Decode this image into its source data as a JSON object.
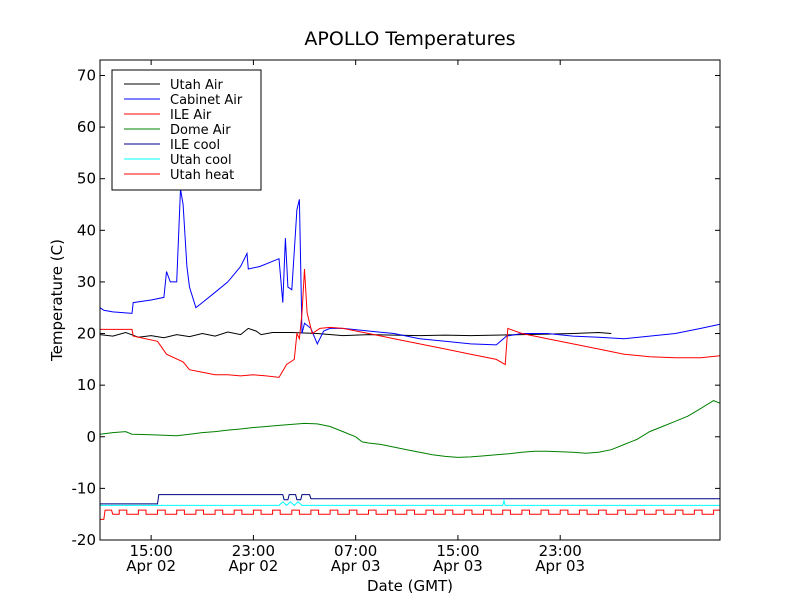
{
  "chart_data": {
    "type": "line",
    "title": "APOLLO Temperatures",
    "xlabel": "Date (GMT)",
    "ylabel": "Temperature (C)",
    "ylim": [
      -20,
      73
    ],
    "xlim": [
      11,
      59.5
    ],
    "x_unit": "hours since Apr 02 00:00 GMT",
    "grid": false,
    "legend_position": "top-left",
    "yticks": [
      {
        "value": -20,
        "label": "-20"
      },
      {
        "value": -10,
        "label": "-10"
      },
      {
        "value": 0,
        "label": "0"
      },
      {
        "value": 10,
        "label": "10"
      },
      {
        "value": 20,
        "label": "20"
      },
      {
        "value": 30,
        "label": "30"
      },
      {
        "value": 40,
        "label": "40"
      },
      {
        "value": 50,
        "label": "50"
      },
      {
        "value": 60,
        "label": "60"
      },
      {
        "value": 70,
        "label": "70"
      }
    ],
    "xticks": [
      {
        "value": 15,
        "time": "15:00",
        "date": "Apr 02"
      },
      {
        "value": 23,
        "time": "23:00",
        "date": "Apr 02"
      },
      {
        "value": 31,
        "time": "07:00",
        "date": "Apr 03"
      },
      {
        "value": 39,
        "time": "15:00",
        "date": "Apr 03"
      },
      {
        "value": 47,
        "time": "23:00",
        "date": "Apr 03"
      }
    ],
    "series": [
      {
        "name": "Utah Air",
        "color": "#000000",
        "points": [
          [
            11,
            19.8
          ],
          [
            12,
            19.5
          ],
          [
            13,
            20.2
          ],
          [
            14,
            19.3
          ],
          [
            15,
            19.6
          ],
          [
            16,
            19.2
          ],
          [
            17,
            19.8
          ],
          [
            18,
            19.4
          ],
          [
            19,
            20.0
          ],
          [
            20,
            19.5
          ],
          [
            21,
            20.3
          ],
          [
            22,
            19.8
          ],
          [
            22.6,
            21.0
          ],
          [
            23.2,
            20.5
          ],
          [
            23.6,
            19.8
          ],
          [
            24.5,
            20.2
          ],
          [
            26,
            20.2
          ],
          [
            28,
            20.0
          ],
          [
            30,
            19.6
          ],
          [
            32,
            19.8
          ],
          [
            34,
            19.7
          ],
          [
            36,
            19.6
          ],
          [
            38,
            19.7
          ],
          [
            40,
            19.6
          ],
          [
            42,
            19.7
          ],
          [
            44,
            19.8
          ],
          [
            46,
            19.9
          ],
          [
            48,
            20.0
          ],
          [
            50,
            20.2
          ],
          [
            51,
            20.0
          ]
        ]
      },
      {
        "name": "Cabinet Air",
        "color": "#0000ff",
        "points": [
          [
            11,
            25.0
          ],
          [
            11.3,
            24.5
          ],
          [
            12,
            24.2
          ],
          [
            13,
            24.0
          ],
          [
            13.5,
            23.9
          ],
          [
            13.6,
            26.0
          ],
          [
            15,
            26.5
          ],
          [
            16,
            27.0
          ],
          [
            16.2,
            32.0
          ],
          [
            16.5,
            30.0
          ],
          [
            17,
            30.0
          ],
          [
            17.3,
            48.0
          ],
          [
            17.5,
            45.0
          ],
          [
            17.8,
            33.0
          ],
          [
            18,
            29.0
          ],
          [
            18.5,
            25.0
          ],
          [
            19,
            26.0
          ],
          [
            20,
            28.0
          ],
          [
            21,
            30.0
          ],
          [
            22,
            33.0
          ],
          [
            22.5,
            35.5
          ],
          [
            22.6,
            32.5
          ],
          [
            23.5,
            33.0
          ],
          [
            24.5,
            34.0
          ],
          [
            25,
            34.5
          ],
          [
            25.3,
            26.0
          ],
          [
            25.5,
            38.5
          ],
          [
            25.7,
            29.0
          ],
          [
            26,
            28.5
          ],
          [
            26.2,
            36.0
          ],
          [
            26.4,
            44.0
          ],
          [
            26.6,
            46.0
          ],
          [
            26.8,
            20.0
          ],
          [
            27,
            22.0
          ],
          [
            27.5,
            21.0
          ],
          [
            28,
            18.0
          ],
          [
            28.5,
            20.5
          ],
          [
            29,
            21.0
          ],
          [
            30,
            21.0
          ],
          [
            32,
            20.5
          ],
          [
            34,
            20.0
          ],
          [
            36,
            19.0
          ],
          [
            38,
            18.5
          ],
          [
            40,
            18.0
          ],
          [
            42,
            17.8
          ],
          [
            42.8,
            19.5
          ],
          [
            44,
            20.0
          ],
          [
            46,
            20.0
          ],
          [
            48,
            19.5
          ],
          [
            50,
            19.3
          ],
          [
            52,
            19.0
          ],
          [
            54,
            19.5
          ],
          [
            56,
            20.0
          ],
          [
            58,
            21.0
          ],
          [
            59.5,
            21.8
          ]
        ]
      },
      {
        "name": "ILE Air",
        "color": "#ff0000",
        "points": [
          [
            11,
            20.8
          ],
          [
            13.5,
            20.8
          ],
          [
            13.6,
            19.5
          ],
          [
            15.5,
            18.5
          ],
          [
            16.2,
            16.0
          ],
          [
            17.5,
            14.5
          ],
          [
            18,
            13.0
          ],
          [
            19,
            12.5
          ],
          [
            20,
            12.0
          ],
          [
            21,
            12.0
          ],
          [
            22,
            11.8
          ],
          [
            23,
            12.0
          ],
          [
            24,
            11.8
          ],
          [
            25,
            11.5
          ],
          [
            25.6,
            14.0
          ],
          [
            26.2,
            15.0
          ],
          [
            26.4,
            20.0
          ],
          [
            26.6,
            19.0
          ],
          [
            26.8,
            24.0
          ],
          [
            27.0,
            32.5
          ],
          [
            27.2,
            24.0
          ],
          [
            27.6,
            20.0
          ],
          [
            28.2,
            21.0
          ],
          [
            29,
            21.2
          ],
          [
            30,
            21.0
          ],
          [
            32,
            20.0
          ],
          [
            34,
            19.0
          ],
          [
            36,
            18.0
          ],
          [
            38,
            17.0
          ],
          [
            40,
            16.0
          ],
          [
            42,
            15.0
          ],
          [
            42.7,
            14.0
          ],
          [
            42.9,
            21.0
          ],
          [
            44,
            20.0
          ],
          [
            46,
            19.0
          ],
          [
            48,
            18.0
          ],
          [
            50,
            17.0
          ],
          [
            52,
            16.0
          ],
          [
            54,
            15.5
          ],
          [
            56,
            15.3
          ],
          [
            58,
            15.3
          ],
          [
            59.5,
            15.7
          ]
        ]
      },
      {
        "name": "Dome Air",
        "color": "#008000",
        "points": [
          [
            11,
            0.5
          ],
          [
            12,
            0.8
          ],
          [
            13,
            1.0
          ],
          [
            13.5,
            0.5
          ],
          [
            15,
            0.4
          ],
          [
            16,
            0.3
          ],
          [
            17,
            0.2
          ],
          [
            18,
            0.5
          ],
          [
            19,
            0.8
          ],
          [
            20,
            1.0
          ],
          [
            21,
            1.3
          ],
          [
            22,
            1.5
          ],
          [
            23,
            1.8
          ],
          [
            24,
            2.0
          ],
          [
            25,
            2.2
          ],
          [
            26,
            2.4
          ],
          [
            27,
            2.6
          ],
          [
            28,
            2.5
          ],
          [
            29,
            2.0
          ],
          [
            30,
            1.0
          ],
          [
            31,
            0.0
          ],
          [
            31.5,
            -1.0
          ],
          [
            32,
            -1.2
          ],
          [
            33,
            -1.5
          ],
          [
            34,
            -2.0
          ],
          [
            35,
            -2.5
          ],
          [
            36,
            -3.0
          ],
          [
            37,
            -3.5
          ],
          [
            38,
            -3.8
          ],
          [
            39,
            -4.0
          ],
          [
            40,
            -3.9
          ],
          [
            41,
            -3.7
          ],
          [
            42,
            -3.5
          ],
          [
            43,
            -3.3
          ],
          [
            44,
            -3.0
          ],
          [
            45,
            -2.8
          ],
          [
            46,
            -2.8
          ],
          [
            47,
            -2.9
          ],
          [
            48,
            -3.0
          ],
          [
            49,
            -3.2
          ],
          [
            50,
            -3.0
          ],
          [
            51,
            -2.5
          ],
          [
            52,
            -1.5
          ],
          [
            53,
            -0.5
          ],
          [
            54,
            1.0
          ],
          [
            55,
            2.0
          ],
          [
            56,
            3.0
          ],
          [
            57,
            4.0
          ],
          [
            58,
            5.5
          ],
          [
            59,
            7.0
          ],
          [
            59.5,
            6.5
          ]
        ]
      },
      {
        "name": "ILE cool",
        "color": "#000080",
        "points": [
          [
            11,
            -13.0
          ],
          [
            15.5,
            -13.0
          ],
          [
            15.6,
            -11.2
          ],
          [
            25.3,
            -11.2
          ],
          [
            25.4,
            -12.2
          ],
          [
            25.7,
            -12.2
          ],
          [
            25.8,
            -11.2
          ],
          [
            26.3,
            -11.2
          ],
          [
            26.4,
            -12.2
          ],
          [
            26.7,
            -12.2
          ],
          [
            26.8,
            -11.2
          ],
          [
            27.4,
            -11.2
          ],
          [
            27.5,
            -12.0
          ],
          [
            59.5,
            -12.0
          ]
        ]
      },
      {
        "name": "Utah cool",
        "color": "#00ffff",
        "points": [
          [
            11,
            -13.3
          ],
          [
            25,
            -13.3
          ],
          [
            25.3,
            -12.6
          ],
          [
            25.6,
            -13.3
          ],
          [
            25.9,
            -12.6
          ],
          [
            26.2,
            -13.3
          ],
          [
            26.5,
            -12.6
          ],
          [
            26.8,
            -13.3
          ],
          [
            42.5,
            -13.3
          ],
          [
            42.6,
            -12.4
          ],
          [
            42.7,
            -13.3
          ],
          [
            59.5,
            -13.3
          ]
        ]
      },
      {
        "name": "Utah heat",
        "color": "#ff0000",
        "points": [
          [
            11,
            -16.0
          ],
          [
            11.3,
            -16.0
          ],
          [
            11.4,
            -14.2
          ],
          [
            11.9,
            -14.2
          ],
          [
            12,
            -15.0
          ]
        ]
      }
    ],
    "utah_heat_cycle": {
      "base": -15.0,
      "high": -14.2,
      "start": 12.5,
      "period": 1.5,
      "on_duration": 0.6,
      "end": 59.5
    }
  }
}
